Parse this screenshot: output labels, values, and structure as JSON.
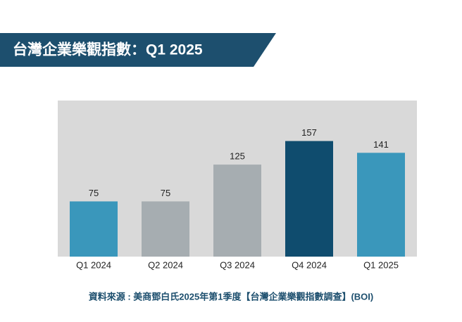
{
  "chart_data": {
    "type": "bar",
    "title": "台灣企業樂觀指數：Q1 2025",
    "source": "資料來源 : 美商鄧白氏2025年第1季度【台灣企業樂觀指數調查】(BOI)",
    "categories": [
      "Q1 2024",
      "Q2 2024",
      "Q3 2024",
      "Q4 2024",
      "Q1 2025"
    ],
    "values": [
      75,
      75,
      125,
      157,
      141
    ],
    "colors": [
      "#3a97bb",
      "#a6adb1",
      "#a6adb1",
      "#0f4c6e",
      "#3a97bb"
    ],
    "ylim": [
      0,
      212
    ],
    "background": "#d9d9d9",
    "title_color": "#1d4f6e"
  }
}
